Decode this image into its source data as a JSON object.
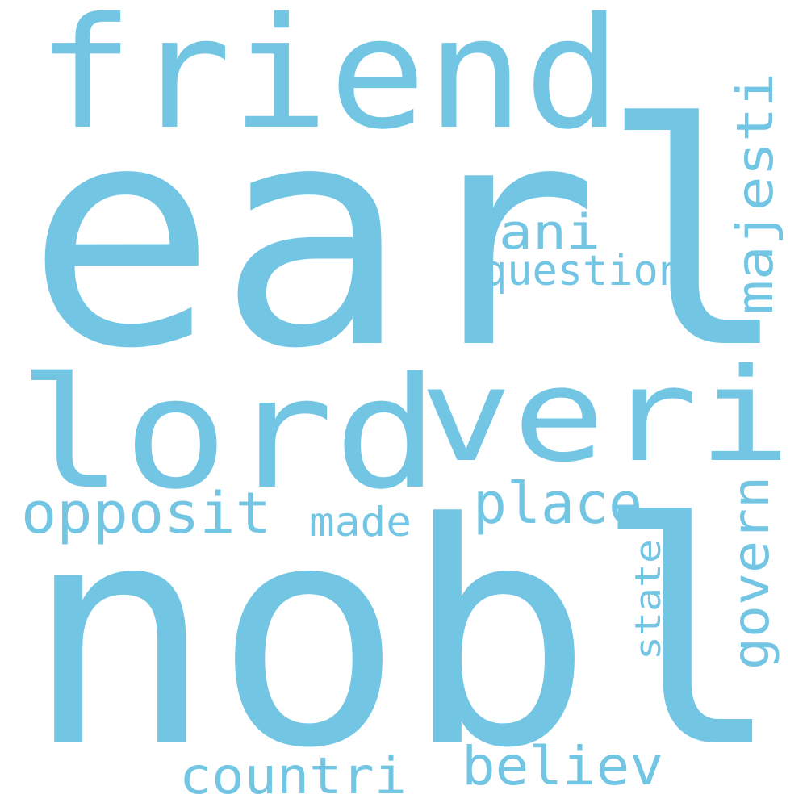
{
  "words": {
    "earl": "earl",
    "nobl": "nobl",
    "lord": "lord",
    "veri": "veri",
    "friend": "friend",
    "majesti": "majesti",
    "ani": "ani",
    "question": "question",
    "opposit": "opposit",
    "place": "place",
    "made": "made",
    "govern": "govern",
    "state": "state",
    "countri": "countri",
    "believ": "believ"
  },
  "colors": {
    "word": "#73c5e4",
    "background": "#ffffff"
  }
}
